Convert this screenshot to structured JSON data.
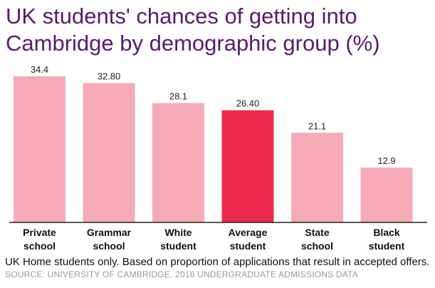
{
  "chart_data": {
    "type": "bar",
    "title": "UK students' chances of getting into Cambridge by demographic group (%)",
    "categories": [
      "Private\nschool",
      "Grammar\nschool",
      "White\nstudent",
      "Average\nstudent",
      "State\nschool",
      "Black\nstudent"
    ],
    "values": [
      34.4,
      32.8,
      28.1,
      26.4,
      21.1,
      12.9
    ],
    "value_labels": [
      "34.4",
      "32.80",
      "28.1",
      "26.40",
      "21.1",
      "12.9"
    ],
    "highlight_index": 3,
    "colors": {
      "bar": "#f6aab8",
      "highlight": "#ee2a4f",
      "baseline": "#222222",
      "title": "#5a1a6e"
    },
    "xlabel": "",
    "ylabel": "",
    "ylim": [
      0,
      34.4
    ],
    "grid": false,
    "legend": "none"
  },
  "footer": {
    "note": "UK Home students only. Based on proportion of applications that result in accepted offers.",
    "source": "SOURCE: UNIVERSITY OF CAMBRIDGE, 2016 UNDERGRADUATE ADMISSIONS DATA"
  }
}
